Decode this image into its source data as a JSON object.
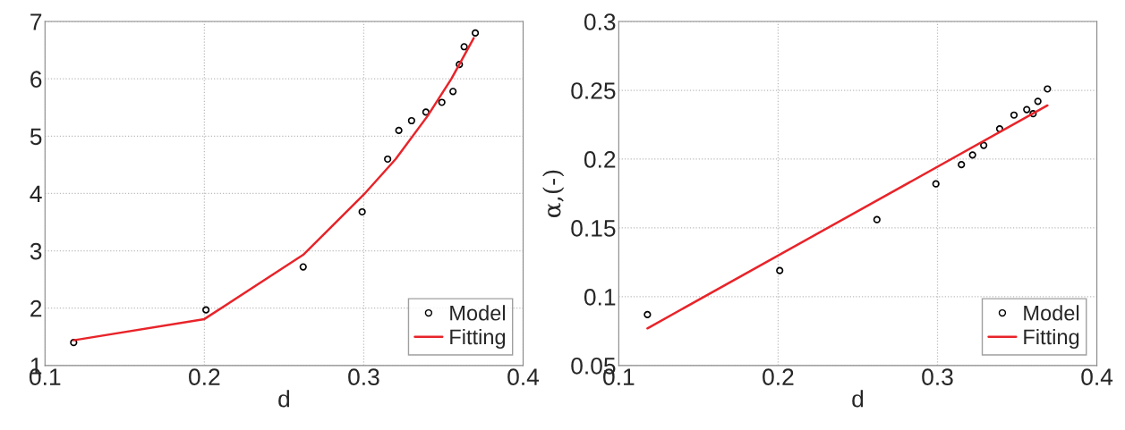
{
  "chart_data": [
    {
      "type": "scatter",
      "xlabel": "d",
      "xlim": [
        0.1,
        0.4
      ],
      "xticks": [
        0.1,
        0.2,
        0.3,
        0.4
      ],
      "ylim": [
        1,
        7
      ],
      "yticks": [
        1,
        2,
        3,
        4,
        5,
        6,
        7
      ],
      "grid": true,
      "legend": "bottom right",
      "series": [
        {
          "name": "Model",
          "marker": "circle",
          "color": "#000000",
          "x": [
            0.118,
            0.201,
            0.262,
            0.299,
            0.315,
            0.322,
            0.33,
            0.339,
            0.349,
            0.356,
            0.36,
            0.363,
            0.37
          ],
          "values": [
            1.4,
            1.97,
            2.72,
            3.68,
            4.6,
            5.1,
            5.27,
            5.42,
            5.59,
            5.78,
            6.25,
            6.56,
            6.8
          ]
        },
        {
          "name": "Fitting",
          "type": "line",
          "line_style": "solid",
          "color": "#e8242a",
          "x": [
            0.118,
            0.2,
            0.262,
            0.3,
            0.32,
            0.34,
            0.355,
            0.369
          ],
          "values": [
            1.44,
            1.81,
            2.93,
            3.98,
            4.6,
            5.35,
            6.0,
            6.71
          ]
        }
      ]
    },
    {
      "type": "scatter",
      "xlabel": "d",
      "ylabel": "α,(-)",
      "xlim": [
        0.1,
        0.4
      ],
      "xticks": [
        0.1,
        0.2,
        0.3,
        0.4
      ],
      "ylim": [
        0.05,
        0.3
      ],
      "yticks": [
        0.05,
        0.1,
        0.15,
        0.2,
        0.25,
        0.3
      ],
      "grid": true,
      "legend": "bottom right",
      "series": [
        {
          "name": "Model",
          "marker": "circle",
          "color": "#000000",
          "x": [
            0.118,
            0.201,
            0.262,
            0.299,
            0.315,
            0.322,
            0.329,
            0.339,
            0.348,
            0.356,
            0.36,
            0.363,
            0.369
          ],
          "values": [
            0.087,
            0.119,
            0.156,
            0.182,
            0.196,
            0.203,
            0.21,
            0.222,
            0.232,
            0.236,
            0.233,
            0.242,
            0.251
          ]
        },
        {
          "name": "Fitting",
          "type": "line",
          "line_style": "solid",
          "color": "#e8242a",
          "x": [
            0.118,
            0.369
          ],
          "values": [
            0.077,
            0.239
          ]
        }
      ]
    }
  ]
}
